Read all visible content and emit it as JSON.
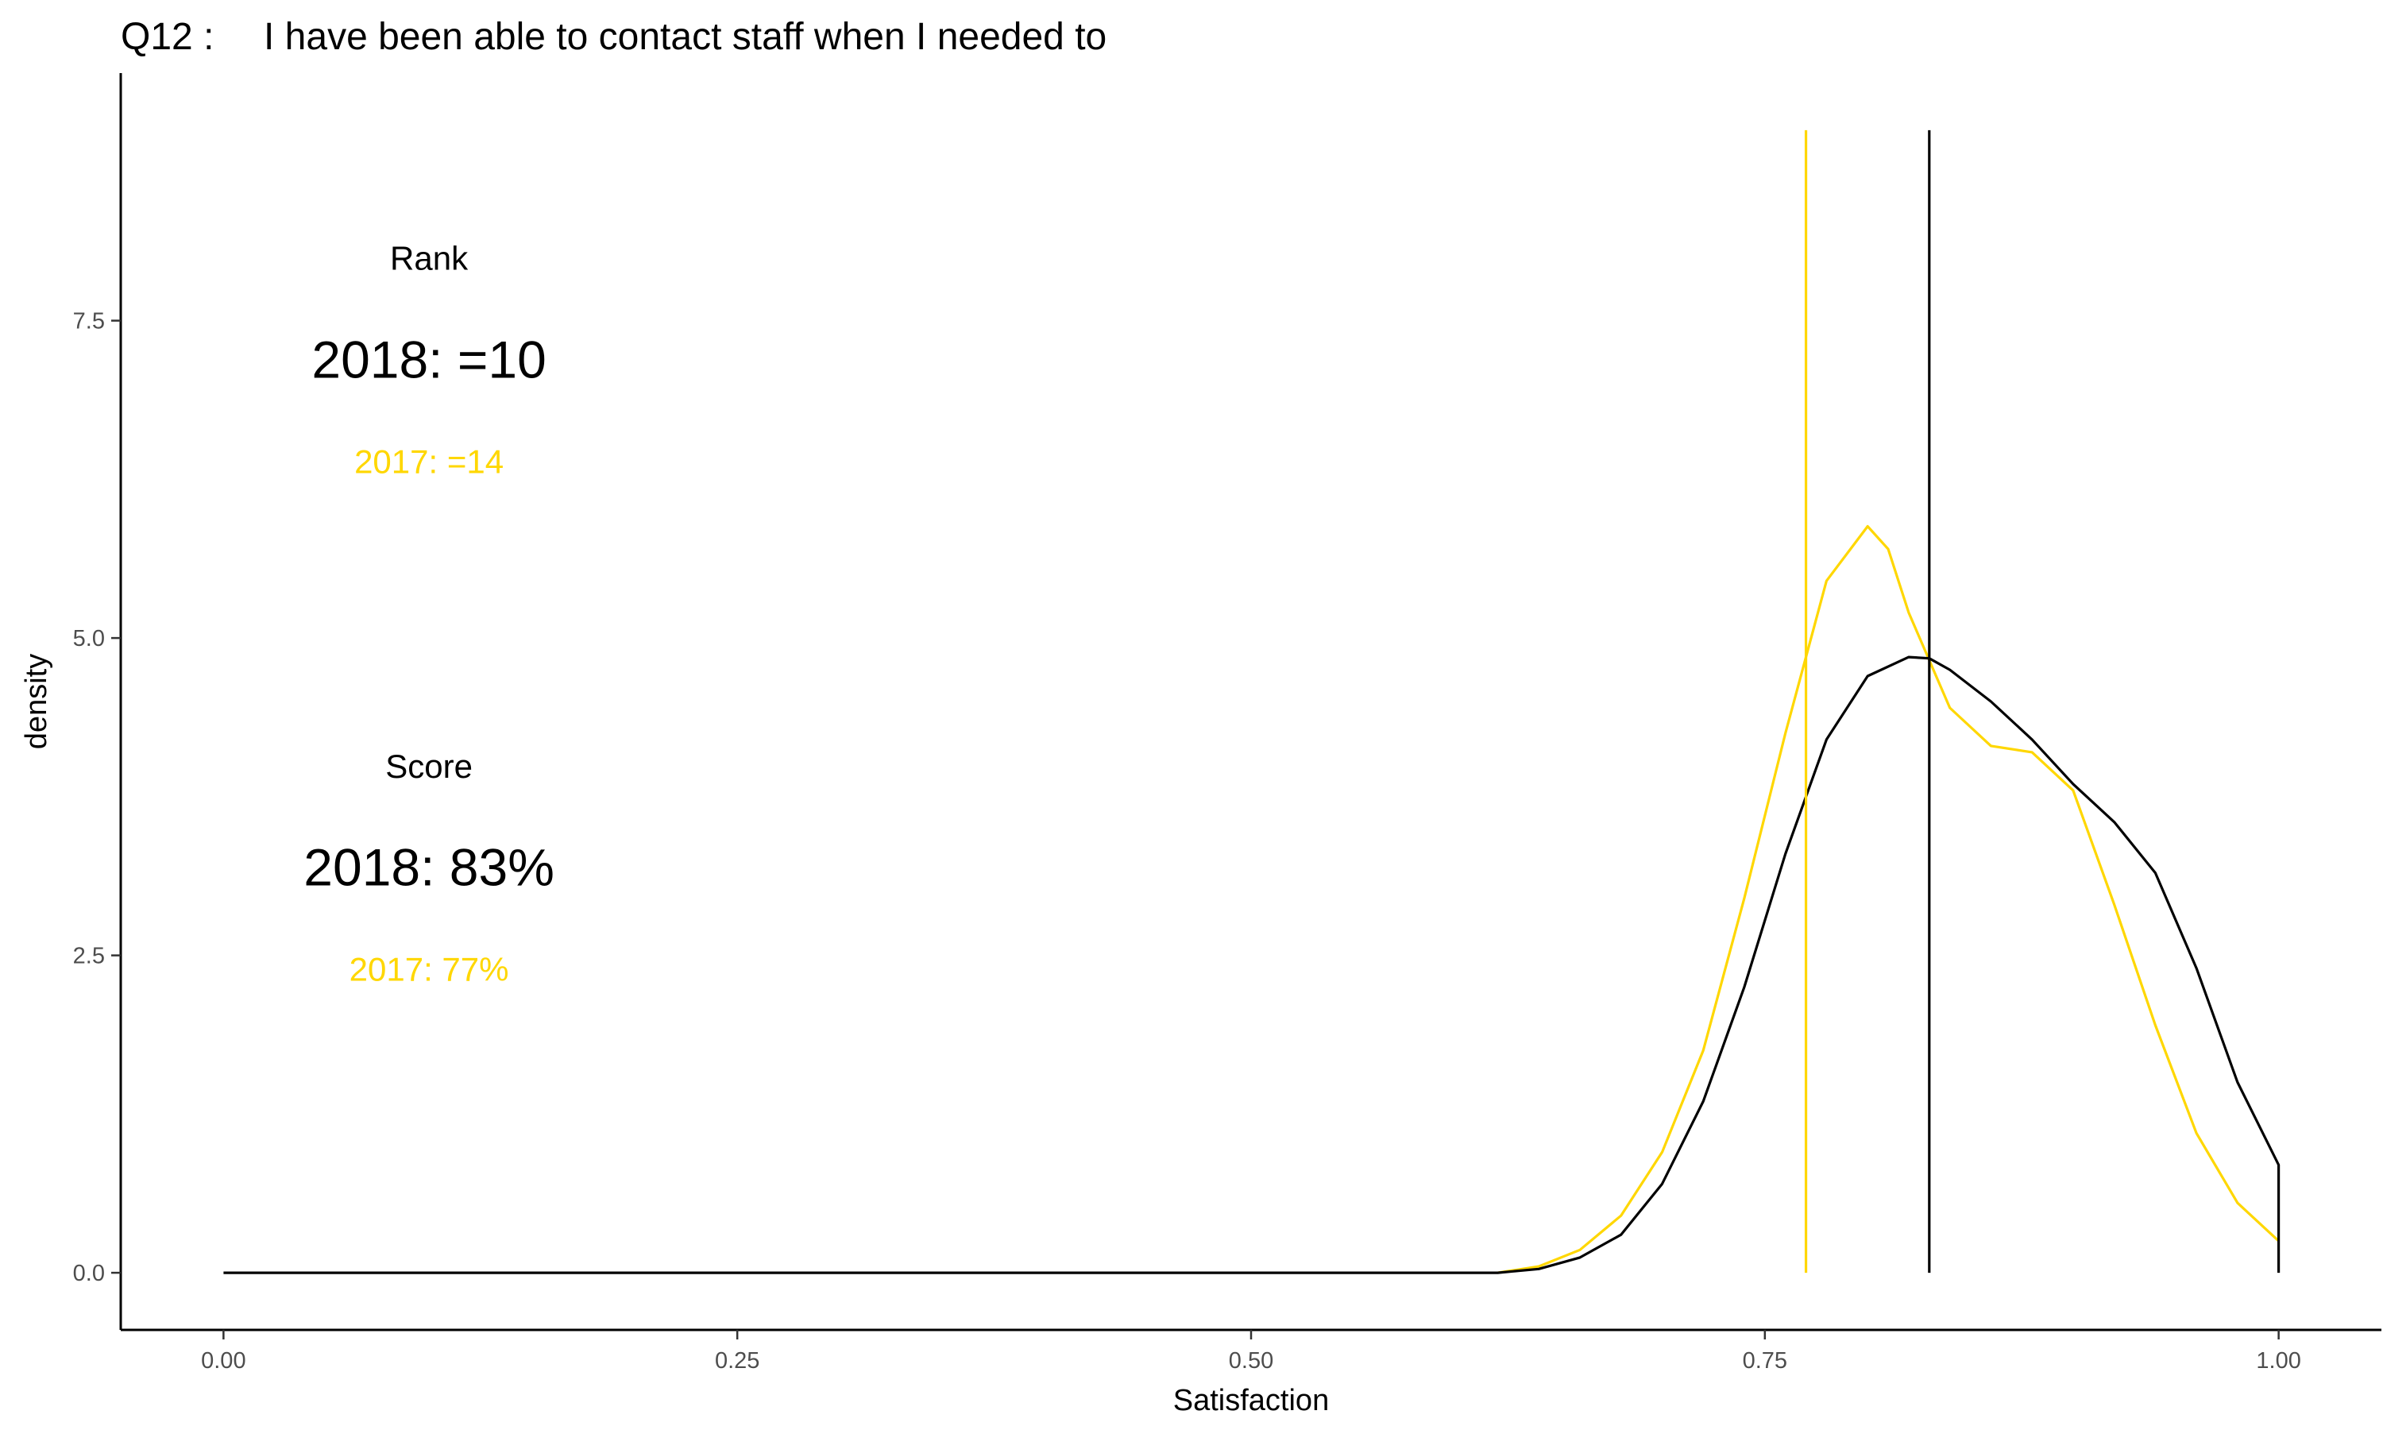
{
  "chart_data": {
    "type": "density",
    "title_prefix": "Q12 :",
    "title": "I have been able to contact staff when I needed to",
    "xlabel": "Satisfaction",
    "ylabel": "density",
    "xlim": [
      -0.05,
      1.05
    ],
    "ylim": [
      -0.45,
      9.45
    ],
    "x_ticks": [
      0,
      0.25,
      0.5,
      0.75,
      1.0
    ],
    "x_tick_labels": [
      "0.00",
      "0.25",
      "0.50",
      "0.75",
      "1.00"
    ],
    "y_ticks": [
      0,
      2.5,
      5.0,
      7.5
    ],
    "y_tick_labels": [
      "0.0",
      "2.5",
      "5.0",
      "7.5"
    ],
    "grid": false,
    "colors": {
      "current": "#000000",
      "previous": "#FFD700",
      "axis_text": "#4d4d4d"
    },
    "series": [
      {
        "year": "2018",
        "color": "#000000",
        "x": [
          0.0,
          0.62,
          0.64,
          0.66,
          0.68,
          0.7,
          0.72,
          0.74,
          0.76,
          0.78,
          0.8,
          0.82,
          0.83,
          0.84,
          0.86,
          0.88,
          0.9,
          0.92,
          0.94,
          0.96,
          0.98,
          1.0,
          1.0
        ],
        "y": [
          0.0,
          0.0,
          0.03,
          0.12,
          0.3,
          0.7,
          1.35,
          2.25,
          3.3,
          4.2,
          4.7,
          4.85,
          4.84,
          4.75,
          4.5,
          4.2,
          3.85,
          3.55,
          3.15,
          2.4,
          1.5,
          0.85,
          0.0
        ],
        "mean_line": 0.83,
        "vline_top": 9.0
      },
      {
        "year": "2017",
        "color": "#FFD700",
        "x": [
          0.62,
          0.64,
          0.66,
          0.68,
          0.7,
          0.72,
          0.74,
          0.76,
          0.78,
          0.8,
          0.81,
          0.82,
          0.84,
          0.86,
          0.88,
          0.9,
          0.92,
          0.94,
          0.96,
          0.98,
          1.0
        ],
        "y": [
          0.0,
          0.05,
          0.18,
          0.45,
          0.95,
          1.75,
          2.95,
          4.25,
          5.45,
          5.88,
          5.7,
          5.2,
          4.45,
          4.15,
          4.1,
          3.8,
          2.9,
          1.95,
          1.1,
          0.55,
          0.25
        ],
        "mean_line": 0.77,
        "vline_top": 9.0
      }
    ],
    "annotations": {
      "rank_heading": "Rank",
      "rank_current": "2018: =10",
      "rank_previous": "2017: =14",
      "score_heading": "Score",
      "score_current": "2018: 83%",
      "score_previous": "2017: 77%",
      "x": 0.1
    }
  }
}
